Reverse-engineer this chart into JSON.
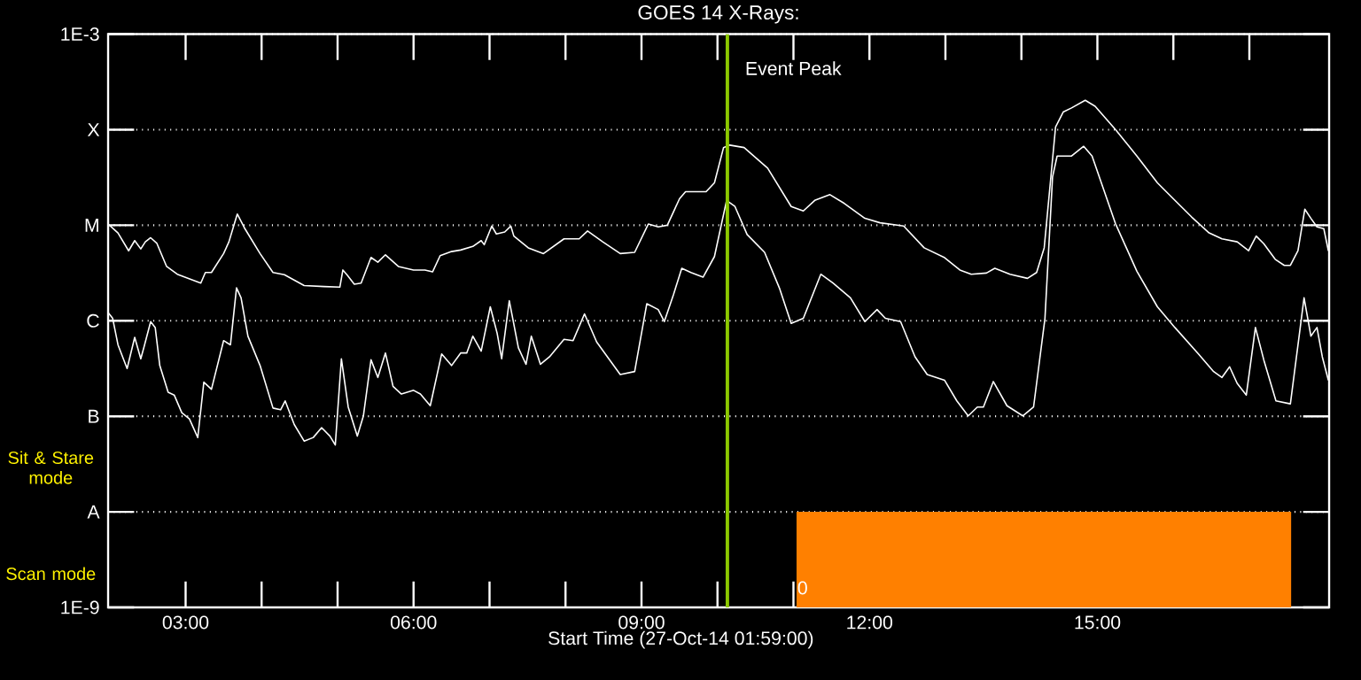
{
  "chart_data": {
    "type": "line",
    "title": "GOES 14 X-Rays:",
    "xlabel": "Start Time (27-Oct-14 01:59:00)",
    "xlim": [
      1.98,
      18.05
    ],
    "ylim": [
      1e-09,
      0.001
    ],
    "log": "y",
    "grid": "y",
    "xticks": [
      {
        "value": 3,
        "label": "03:00"
      },
      {
        "value": 4,
        "label": null
      },
      {
        "value": 5,
        "label": null
      },
      {
        "value": 6,
        "label": "06:00"
      },
      {
        "value": 7,
        "label": null
      },
      {
        "value": 8,
        "label": null
      },
      {
        "value": 9,
        "label": "09:00"
      },
      {
        "value": 10,
        "label": null
      },
      {
        "value": 11,
        "label": null
      },
      {
        "value": 12,
        "label": "12:00"
      },
      {
        "value": 13,
        "label": null
      },
      {
        "value": 14,
        "label": null
      },
      {
        "value": 15,
        "label": "15:00"
      },
      {
        "value": 16,
        "label": null
      },
      {
        "value": 17,
        "label": null
      }
    ],
    "yticks": [
      {
        "value": 1e-09,
        "label": "1E-9"
      },
      {
        "value": 1e-08,
        "label": "A"
      },
      {
        "value": 1e-07,
        "label": "B"
      },
      {
        "value": 1e-06,
        "label": "C"
      },
      {
        "value": 1e-05,
        "label": "M"
      },
      {
        "value": 0.0001,
        "label": "X"
      },
      {
        "value": 0.001,
        "label": "1E-3"
      }
    ],
    "ref_lines": [
      {
        "axis": "x",
        "value": 10.13,
        "label": "Event Peak",
        "color": "#8cc800"
      }
    ],
    "annotations": [
      "Sit & Stare mode",
      "Scan mode",
      {
        "text": "0",
        "x": 11.12,
        "y": 1.6e-09
      }
    ],
    "series": [
      {
        "color": "#ffffff",
        "x": [
          1.98,
          2.11,
          2.25,
          2.33,
          2.41,
          2.47,
          2.54,
          2.62,
          2.75,
          2.89,
          3.2,
          3.26,
          3.34,
          3.5,
          3.57,
          3.68,
          3.78,
          3.98,
          4.15,
          4.3,
          4.56,
          4.82,
          5.03,
          5.07,
          5.13,
          5.22,
          5.31,
          5.44,
          5.53,
          5.63,
          5.8,
          6.0,
          6.15,
          6.25,
          6.35,
          6.5,
          6.62,
          6.78,
          6.89,
          6.93,
          7.03,
          7.09,
          7.2,
          7.28,
          7.32,
          7.51,
          7.71,
          7.98,
          8.18,
          8.29,
          8.49,
          8.72,
          8.91,
          9.09,
          9.22,
          9.34,
          9.5,
          9.58,
          9.85,
          9.96,
          10.08,
          10.16,
          10.35,
          10.66,
          10.97,
          11.13,
          11.28,
          11.48,
          11.67,
          11.94,
          12.14,
          12.45,
          12.72,
          12.99,
          13.19,
          13.34,
          13.54,
          13.65,
          13.85,
          14.08,
          14.2,
          14.3,
          14.45,
          14.55,
          14.66,
          14.84,
          14.97,
          15.24,
          15.52,
          15.79,
          16.02,
          16.24,
          16.47,
          16.64,
          16.84,
          16.99,
          17.09,
          17.19,
          17.34,
          17.46,
          17.54,
          17.64,
          17.73,
          17.81,
          17.89,
          17.98,
          18.04
        ],
        "values": [
          1.03e-05,
          8.3e-06,
          5.4e-06,
          6.9e-06,
          5.65e-06,
          6.7e-06,
          7.4e-06,
          6.5e-06,
          3.7e-06,
          3.07e-06,
          2.48e-06,
          3.2e-06,
          3.2e-06,
          5.05e-06,
          6.7e-06,
          1.31e-05,
          9.2e-06,
          5.05e-06,
          3.2e-06,
          3.03e-06,
          2.34e-06,
          2.28e-06,
          2.25e-06,
          3.4e-06,
          2.99e-06,
          2.41e-06,
          2.48e-06,
          4.6e-06,
          4.1e-06,
          4.9e-06,
          3.7e-06,
          3.4e-06,
          3.4e-06,
          3.25e-06,
          4.8e-06,
          5.3e-06,
          5.5e-06,
          6e-06,
          6.9e-06,
          6.25e-06,
          9.8e-06,
          8.1e-06,
          8.5e-06,
          9.8e-06,
          7.7e-06,
          5.8e-06,
          5.05e-06,
          7.2e-06,
          7.2e-06,
          8.7e-06,
          6.7e-06,
          5.05e-06,
          5.2e-06,
          1.03e-05,
          9.6e-06,
          1e-05,
          1.89e-05,
          2.24e-05,
          2.24e-05,
          2.78e-05,
          6.5e-05,
          6.9e-05,
          6.5e-05,
          3.96e-05,
          1.57e-05,
          1.41e-05,
          1.82e-05,
          2.09e-05,
          1.69e-05,
          1.18e-05,
          1.06e-05,
          9.8e-06,
          5.8e-06,
          4.57e-06,
          3.4e-06,
          3.07e-06,
          3.16e-06,
          3.54e-06,
          3.07e-06,
          2.78e-06,
          3.2e-06,
          5.8e-06,
          0.000107,
          0.000153,
          0.000169,
          0.000203,
          0.000176,
          0.0001,
          5.3e-05,
          2.78e-05,
          1.82e-05,
          1.22e-05,
          8.3e-06,
          7.2e-06,
          6.7e-06,
          5.4e-06,
          7.7e-06,
          6.4e-06,
          4.4e-06,
          3.8e-06,
          3.8e-06,
          5.4e-06,
          1.47e-05,
          1.18e-05,
          9.6e-06,
          9.2e-06,
          5.4e-06
        ]
      },
      {
        "color": "#ffffff",
        "x": [
          1.98,
          2.04,
          2.11,
          2.23,
          2.33,
          2.41,
          2.46,
          2.54,
          2.6,
          2.66,
          2.77,
          2.85,
          2.95,
          3.05,
          3.16,
          3.24,
          3.34,
          3.5,
          3.59,
          3.67,
          3.73,
          3.82,
          3.98,
          4.15,
          4.25,
          4.31,
          4.43,
          4.56,
          4.68,
          4.79,
          4.9,
          4.97,
          5.05,
          5.14,
          5.26,
          5.34,
          5.44,
          5.53,
          5.63,
          5.73,
          5.84,
          6.0,
          6.09,
          6.22,
          6.37,
          6.5,
          6.62,
          6.7,
          6.78,
          6.89,
          7.01,
          7.1,
          7.16,
          7.26,
          7.38,
          7.48,
          7.55,
          7.67,
          7.79,
          7.98,
          8.1,
          8.25,
          8.41,
          8.72,
          8.91,
          9.07,
          9.22,
          9.3,
          9.42,
          9.53,
          9.65,
          9.81,
          9.96,
          10.12,
          10.23,
          10.39,
          10.62,
          10.82,
          10.97,
          11.13,
          11.36,
          11.52,
          11.75,
          11.94,
          12.1,
          12.21,
          12.41,
          12.6,
          12.76,
          12.99,
          13.15,
          13.3,
          13.42,
          13.5,
          13.63,
          13.81,
          14.02,
          14.16,
          14.31,
          14.41,
          14.47,
          14.66,
          14.82,
          14.93,
          15.24,
          15.52,
          15.79,
          16.02,
          16.33,
          16.53,
          16.64,
          16.74,
          16.84,
          16.96,
          17.08,
          17.19,
          17.35,
          17.54,
          17.72,
          17.81,
          17.89,
          17.96,
          18.04
        ],
        "values": [
          1.22e-06,
          1.06e-06,
          5.6e-07,
          3.16e-07,
          6.7e-07,
          4e-07,
          5.6e-07,
          9.8e-07,
          8.5e-07,
          3.4e-07,
          1.79e-07,
          1.67e-07,
          1.09e-07,
          9.4e-08,
          6e-08,
          2.28e-07,
          1.92e-07,
          6.2e-07,
          5.6e-07,
          2.21e-06,
          1.74e-06,
          6.9e-07,
          3.4e-07,
          1.22e-07,
          1.17e-07,
          1.45e-07,
          8.2e-08,
          5.5e-08,
          6e-08,
          7.6e-08,
          6.2e-08,
          5e-08,
          4e-07,
          1.25e-07,
          6.2e-08,
          1.01e-07,
          3.9e-07,
          2.55e-07,
          4.6e-07,
          2.06e-07,
          1.71e-07,
          1.87e-07,
          1.71e-07,
          1.29e-07,
          4.5e-07,
          3.4e-07,
          4.6e-07,
          4.6e-07,
          6.9e-07,
          4.8e-07,
          1.4e-06,
          7.4e-07,
          4e-07,
          1.62e-06,
          5.2e-07,
          3.5e-07,
          6.9e-07,
          3.5e-07,
          4.2e-07,
          6.4e-07,
          6.2e-07,
          1.18e-06,
          6e-07,
          2.74e-07,
          2.94e-07,
          1.51e-06,
          1.31e-06,
          9.8e-07,
          1.87e-06,
          3.54e-06,
          3.2e-06,
          2.86e-06,
          4.7e-06,
          1.82e-05,
          1.57e-05,
          8e-06,
          5.2e-06,
          2.15e-06,
          9.4e-07,
          1.06e-06,
          3.07e-06,
          2.48e-06,
          1.74e-06,
          9.8e-07,
          1.31e-06,
          1.06e-06,
          9.8e-07,
          4.2e-07,
          2.74e-07,
          2.38e-07,
          1.45e-07,
          1.01e-07,
          1.25e-07,
          1.25e-07,
          2.31e-07,
          1.29e-07,
          1.01e-07,
          1.25e-07,
          1.06e-06,
          3.2e-05,
          5.3e-05,
          5.3e-05,
          6.7e-05,
          5.3e-05,
          1.03e-05,
          3.3e-06,
          1.4e-06,
          8.5e-07,
          4.5e-07,
          2.94e-07,
          2.55e-07,
          3.3e-07,
          2.21e-07,
          1.67e-07,
          8.5e-07,
          3.9e-07,
          1.45e-07,
          1.35e-07,
          1.74e-06,
          6.9e-07,
          8.5e-07,
          4.2e-07,
          2.38e-07
        ]
      },
      {
        "type": "area",
        "color": "#ff8000",
        "x": [
          11.04,
          17.55
        ],
        "values": [
          1e-08,
          1e-08
        ]
      }
    ]
  }
}
